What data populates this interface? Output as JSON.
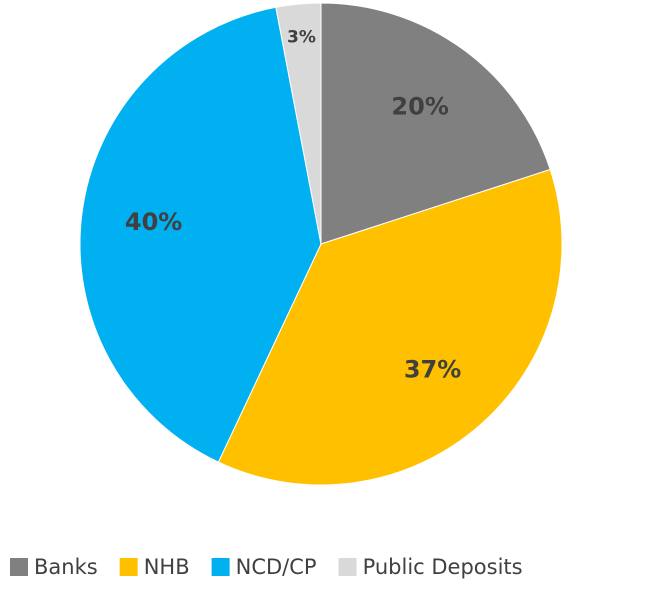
{
  "chart_data": {
    "type": "pie",
    "categories": [
      "Banks",
      "NHB",
      "NCD/CP",
      "Public Deposits"
    ],
    "values": [
      20,
      37,
      40,
      3
    ],
    "value_labels": [
      "20%",
      "37%",
      "40%",
      "3%"
    ],
    "colors": [
      "#808080",
      "#ffc000",
      "#00b0f0",
      "#d9d9d9"
    ],
    "legend": "bottom"
  }
}
